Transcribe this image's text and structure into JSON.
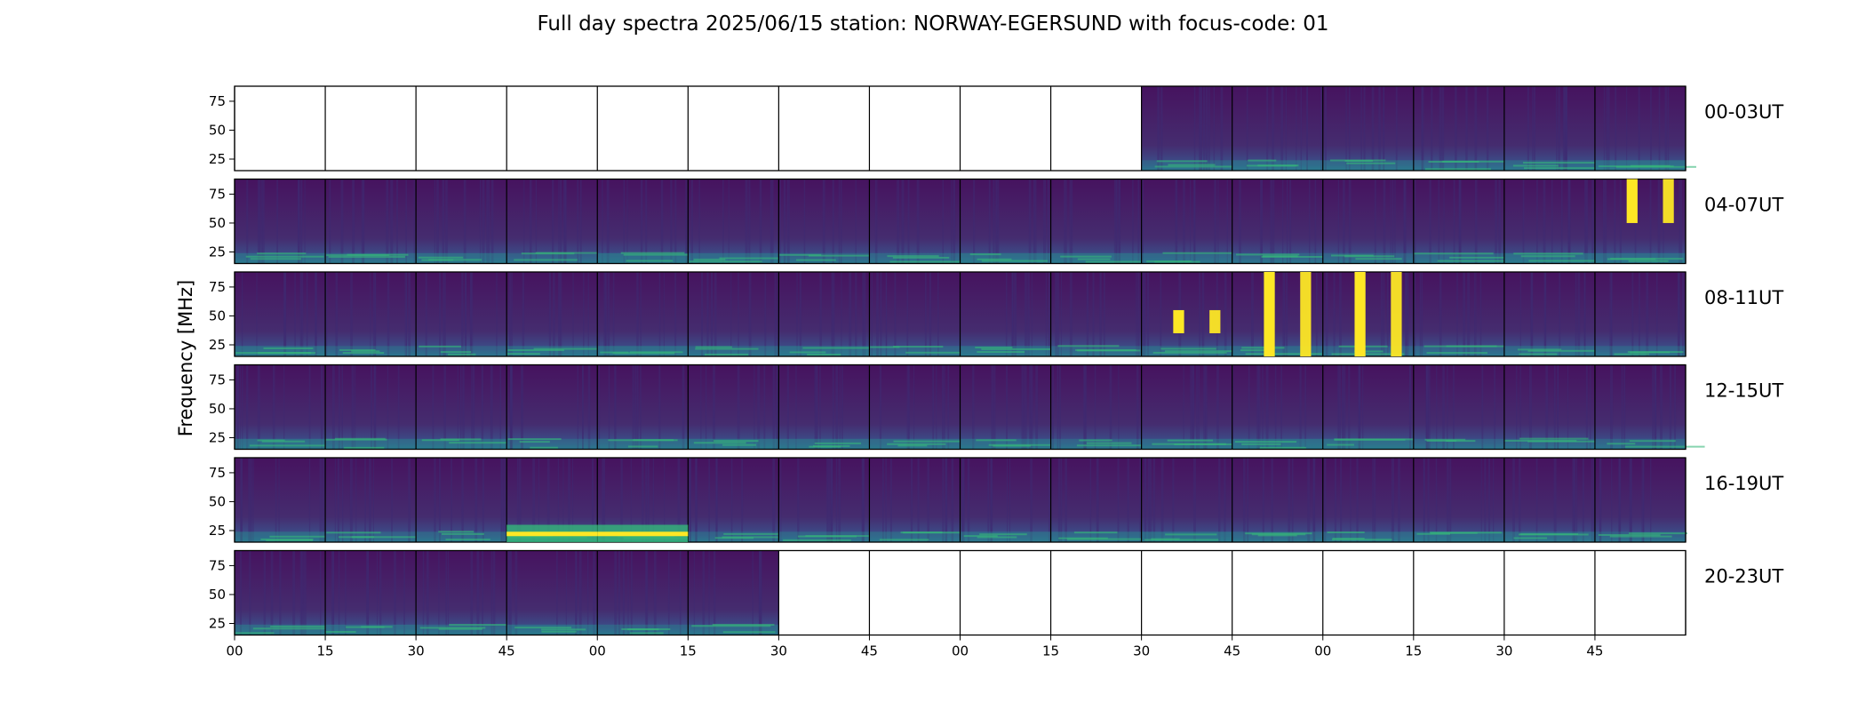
{
  "chart_data": {
    "type": "heatmap",
    "title": "Full day spectra 2025/06/15 station: NORWAY-EGERSUND with focus-code: 01",
    "xlabel": "",
    "ylabel": "Frequency [MHz]",
    "colormap": "viridis",
    "rows": [
      "00-03UT",
      "04-07UT",
      "08-11UT",
      "12-15UT",
      "16-19UT",
      "20-23UT"
    ],
    "panels_per_row": 16,
    "panel_minutes": 15,
    "x_tick_labels": [
      "00",
      "15",
      "30",
      "45",
      "00",
      "15",
      "30",
      "45",
      "00",
      "15",
      "30",
      "45",
      "00",
      "15",
      "30",
      "45"
    ],
    "y_ticks": [
      25,
      50,
      75
    ],
    "ylim": [
      15,
      88
    ],
    "empty_panels": {
      "00-03UT": [
        0,
        1,
        2,
        3,
        4,
        5,
        6,
        7,
        8,
        9
      ],
      "20-23UT": [
        6,
        7,
        8,
        9,
        10,
        11,
        12,
        13,
        14,
        15
      ]
    },
    "strong_bursts": [
      {
        "row": "04-07UT",
        "panel": 15,
        "freq_range": [
          50,
          88
        ]
      },
      {
        "row": "08-11UT",
        "panel": 11,
        "freq_range": [
          15,
          88
        ]
      },
      {
        "row": "08-11UT",
        "panel": 12,
        "freq_range": [
          15,
          88
        ]
      },
      {
        "row": "08-11UT",
        "panel": 10,
        "freq_range": [
          35,
          55
        ]
      },
      {
        "row": "16-19UT",
        "panel": 4,
        "freq_range": [
          15,
          30
        ]
      },
      {
        "row": "16-19UT",
        "panel": 3,
        "freq_range": [
          15,
          30
        ]
      }
    ]
  }
}
